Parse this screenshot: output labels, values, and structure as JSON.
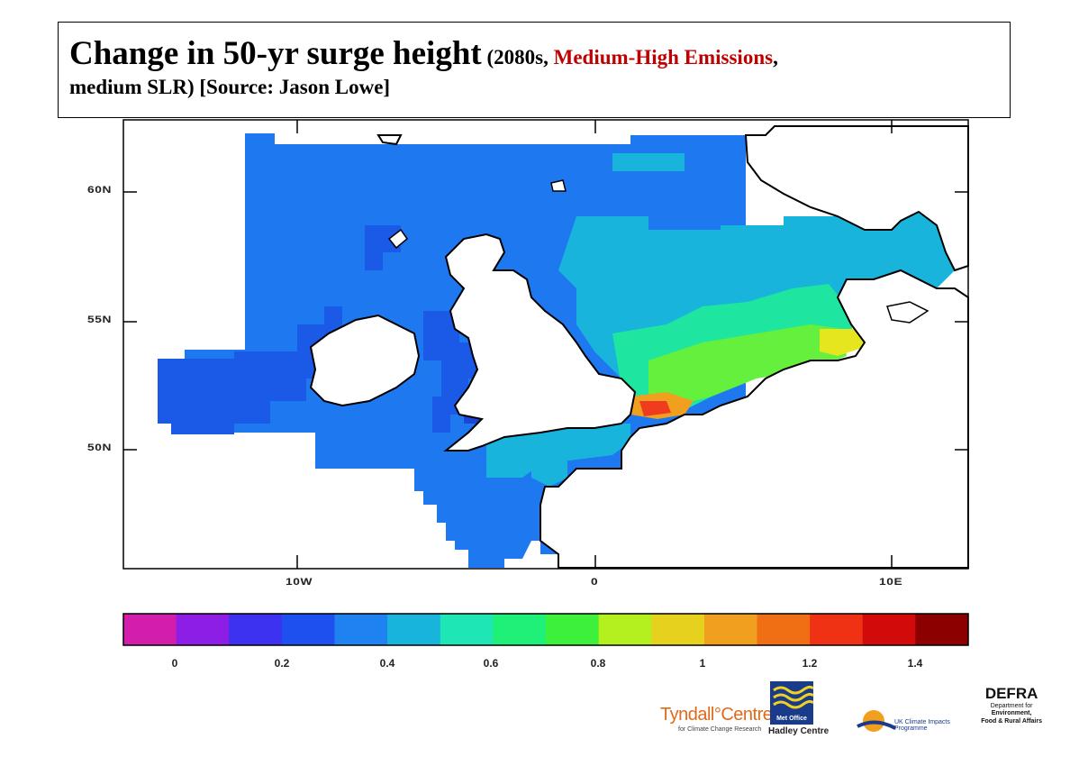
{
  "title": {
    "main": "Change in 50-yr surge height",
    "part1": " (2080s, ",
    "emphasis": "Medium-High Emissions",
    "part2": ",",
    "line2": "medium SLR)  [Source: Jason Lowe]"
  },
  "map": {
    "lat_labels": [
      "60N",
      "55N",
      "50N"
    ],
    "lon_labels": [
      "10W",
      "0",
      "10E"
    ],
    "colors": {
      "land": "#ffffff",
      "sea_base": "#1e78f0",
      "sea_deep": "#1a5ae6",
      "sea_darker": "#1c46d8",
      "sea_cyan": "#18b4dc",
      "sea_green": "#1ee6a0",
      "sea_lime": "#64f03c",
      "sea_yellow": "#e6e61e",
      "sea_orange": "#f0a01e",
      "sea_red": "#f03c1e",
      "coastline": "#000000"
    }
  },
  "colorbar": {
    "labels": [
      "0",
      "0.2",
      "0.4",
      "0.6",
      "0.8",
      "1",
      "1.2",
      "1.4"
    ],
    "colors": [
      "#d21eaa",
      "#8c1ee6",
      "#3c32f0",
      "#1e50f0",
      "#1e82f0",
      "#18b4dc",
      "#1ee6b4",
      "#1ef078",
      "#3cf03c",
      "#b4f01e",
      "#e6d21e",
      "#f0a01e",
      "#f06e14",
      "#f03214",
      "#d20a0a",
      "#8c0000"
    ]
  },
  "logos": {
    "tyndall": "Tyndall°Centre",
    "tyndall_sub": "for Climate Change Research",
    "metoffice": "Met Office",
    "hadley": "Hadley Centre",
    "ukcip": "UK Climate Impacts Programme",
    "defra_title": "DEFRA",
    "defra_line1": "Department for",
    "defra_line2": "Environment,",
    "defra_line3": "Food & Rural Affairs"
  }
}
